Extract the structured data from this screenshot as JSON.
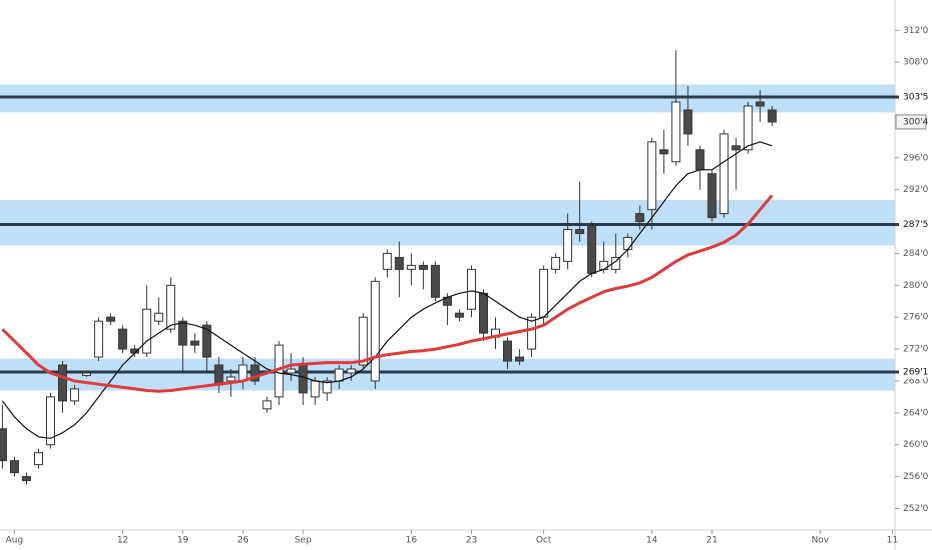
{
  "chart_data": {
    "type": "candlestick",
    "open": [
      262,
      258,
      256,
      257.5,
      260,
      270,
      265.5,
      268.7,
      271,
      276,
      274.5,
      272,
      271.5,
      275.5,
      274.5,
      275.5,
      273,
      275,
      270,
      268,
      268,
      270,
      264.5,
      266,
      269,
      270,
      266,
      266.5,
      268,
      269,
      270,
      268,
      282,
      283.5,
      282,
      282.5,
      282.5,
      278.5,
      276.5,
      277,
      279,
      273.5,
      273,
      271,
      272,
      276,
      282,
      283,
      287,
      287.5,
      282,
      282,
      284.5,
      289,
      289.5,
      297,
      295.5,
      302,
      297,
      294,
      289,
      297.5,
      297,
      303,
      302
    ],
    "high": [
      265,
      258.5,
      256.5,
      259.5,
      266.5,
      270.5,
      267.5,
      269.3,
      276,
      276.5,
      275,
      272.5,
      280,
      278.5,
      281,
      276,
      274,
      275.5,
      271,
      269.5,
      271,
      271,
      266,
      273,
      271.5,
      271,
      268.5,
      268.5,
      270,
      270,
      276.5,
      281,
      284.5,
      285.5,
      284,
      283,
      283,
      279,
      277,
      282.5,
      279.5,
      276,
      273.5,
      272,
      276.5,
      282.5,
      284,
      289,
      293,
      288,
      285.5,
      286.5,
      286.5,
      290,
      298.5,
      299.5,
      309.5,
      305,
      297.5,
      294.5,
      299.5,
      298.5,
      303,
      304.5,
      302.5
    ],
    "low": [
      257,
      256,
      255,
      257,
      259.5,
      264,
      265,
      268.5,
      270.5,
      275,
      271.5,
      271,
      271,
      275,
      274,
      269,
      271.5,
      269,
      266.5,
      266,
      267,
      267.5,
      264,
      265,
      268,
      265,
      265,
      265.5,
      267,
      268,
      269.5,
      267,
      281,
      278.5,
      280,
      279.5,
      278,
      275,
      275.5,
      276,
      273,
      272,
      269.5,
      270,
      271,
      275,
      281.5,
      282,
      285.5,
      281,
      281.5,
      281.5,
      283.5,
      287,
      287,
      294,
      295,
      297.5,
      292,
      288,
      288.5,
      292,
      296.5,
      300.5,
      300
    ],
    "close": [
      258,
      256.5,
      255.5,
      259,
      266,
      265.5,
      267,
      269,
      275.5,
      275.5,
      272,
      271.5,
      277,
      276.5,
      280,
      272.5,
      272.5,
      271,
      267.5,
      268.5,
      270,
      268,
      265.5,
      272.5,
      269.5,
      266.5,
      268,
      268,
      269.5,
      269.5,
      276,
      280.5,
      284,
      282,
      282.5,
      282,
      278.5,
      277.5,
      276,
      282,
      274,
      274.5,
      270.5,
      270.5,
      276,
      282,
      283.5,
      287,
      286.5,
      281.5,
      283,
      283.5,
      286,
      288,
      298,
      296.5,
      303,
      299,
      294.5,
      288.5,
      299,
      297,
      302.5,
      302.5,
      300.5
    ],
    "up_color": "#ffffff",
    "down_color": "#4a4a4a",
    "wick_color": "#333333",
    "series": [
      {
        "color": "#111111",
        "width": 1.2,
        "values": [
          265.5,
          263.5,
          262,
          261,
          260.8,
          261.5,
          262.5,
          264,
          266,
          268,
          270,
          271.5,
          273,
          274,
          275,
          275.3,
          275,
          274.5,
          273.5,
          272.5,
          271.5,
          270.5,
          269.5,
          269,
          268.8,
          268.5,
          268,
          267.8,
          268,
          268.5,
          269.5,
          271,
          273,
          274.5,
          276,
          277,
          277.8,
          278.5,
          279,
          279.3,
          279,
          278,
          277,
          276,
          275.5,
          276,
          277.5,
          279,
          280.5,
          281.5,
          282,
          283,
          284.5,
          286.5,
          288.5,
          290.5,
          292.5,
          294,
          294.5,
          294.5,
          295.5,
          296.5,
          297.5,
          298,
          297.5
        ]
      },
      {
        "color": "#e03a3a",
        "width": 3,
        "values": [
          274.5,
          273,
          271.5,
          270,
          269,
          268.5,
          268,
          267.8,
          267.6,
          267.4,
          267.2,
          267,
          266.8,
          266.7,
          266.8,
          267,
          267.2,
          267.4,
          267.6,
          267.8,
          268,
          268.5,
          269,
          269.5,
          270,
          270.1,
          270.2,
          270.3,
          270.3,
          270.3,
          270.5,
          271,
          271.3,
          271.5,
          271.7,
          271.8,
          272,
          272.3,
          272.6,
          273,
          273.3,
          273.6,
          273.9,
          274.2,
          274.5,
          275,
          276,
          277,
          277.8,
          278.5,
          279.2,
          279.6,
          279.9,
          280.3,
          281,
          282,
          283,
          283.8,
          284.3,
          284.8,
          285.4,
          286.3,
          287.7,
          289.5,
          291.3
        ]
      }
    ],
    "levels": [
      {
        "value": 303.625,
        "label": "303'5",
        "zone": [
          301.7,
          305.2
        ]
      },
      {
        "value": 287.625,
        "label": "287'5",
        "zone": [
          285,
          290.7
        ]
      },
      {
        "value": 269.125,
        "label": "269'1",
        "zone": [
          266.8,
          270.8
        ]
      }
    ],
    "zone_color": "#b6dcf7",
    "level_color": "#2b3a4c",
    "last_price": {
      "value": 300.5,
      "label": "300'4"
    },
    "xlim": [
      -0.2,
      74.05
    ],
    "ylim": [
      249.3,
      315.8
    ],
    "xticks": [
      {
        "value": 1,
        "label": "Aug"
      },
      {
        "value": 10,
        "label": "12"
      },
      {
        "value": 15,
        "label": "19"
      },
      {
        "value": 20,
        "label": "26"
      },
      {
        "value": 25,
        "label": "Sep"
      },
      {
        "value": 34,
        "label": "16"
      },
      {
        "value": 39,
        "label": "23"
      },
      {
        "value": 45,
        "label": "Oct"
      },
      {
        "value": 54,
        "label": "14"
      },
      {
        "value": 59,
        "label": "21"
      },
      {
        "value": 68,
        "label": "Nov"
      },
      {
        "value": 74,
        "label": "11"
      }
    ],
    "yticks": [
      {
        "value": 252,
        "label": "252'0"
      },
      {
        "value": 256,
        "label": "256'0"
      },
      {
        "value": 260,
        "label": "260'0"
      },
      {
        "value": 264,
        "label": "264'0"
      },
      {
        "value": 268,
        "label": "268'0"
      },
      {
        "value": 272,
        "label": "272'0"
      },
      {
        "value": 276,
        "label": "276'0"
      },
      {
        "value": 280,
        "label": "280'0"
      },
      {
        "value": 284,
        "label": "284'0"
      },
      {
        "value": 292,
        "label": "292'0"
      },
      {
        "value": 296,
        "label": "296'0"
      },
      {
        "value": 308,
        "label": "308'0"
      },
      {
        "value": 312,
        "label": "312'0"
      }
    ]
  }
}
